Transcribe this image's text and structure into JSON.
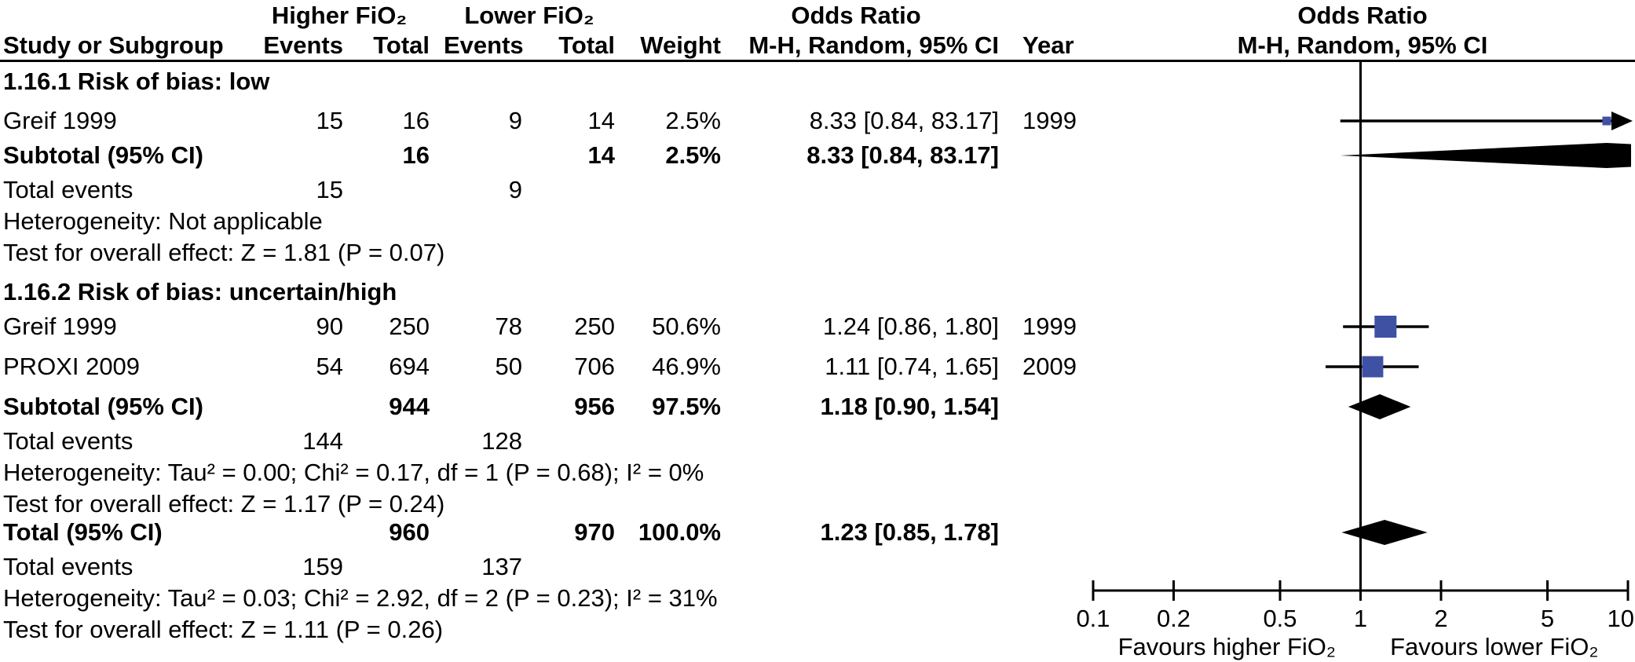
{
  "header": {
    "group_higher": "Higher FiO₂",
    "group_lower": "Lower FiO₂",
    "or_text_col_title": "Odds Ratio",
    "or_plot_col_title": "Odds Ratio",
    "col_study": "Study or Subgroup",
    "col_events_higher": "Events",
    "col_total_higher": "Total",
    "col_events_lower": "Events",
    "col_total_lower": "Total",
    "col_weight": "Weight",
    "col_mh": "M-H, Random, 95% CI",
    "col_year": "Year",
    "plot_mh": "M-H, Random, 95% CI"
  },
  "rows": [
    {
      "label": "1.16.1 Risk of bias: low"
    },
    {
      "study": "Greif 1999",
      "e1": "15",
      "t1": "16",
      "e2": "9",
      "t2": "14",
      "weight": "2.5%",
      "or": "8.33 [0.84, 83.17]",
      "year": "1999"
    },
    {
      "label": "Subtotal (95% CI)",
      "t1": "16",
      "t2": "14",
      "weight": "2.5%",
      "or": "8.33 [0.84, 83.17]"
    },
    {
      "label": "Total events",
      "e1": "15",
      "e2": "9"
    },
    {
      "label": "Heterogeneity: Not applicable"
    },
    {
      "label": "Test for overall effect: Z = 1.81 (P = 0.07)"
    },
    {
      "label": "1.16.2 Risk of bias: uncertain/high"
    },
    {
      "study": "Greif 1999",
      "e1": "90",
      "t1": "250",
      "e2": "78",
      "t2": "250",
      "weight": "50.6%",
      "or": "1.24 [0.86, 1.80]",
      "year": "1999"
    },
    {
      "study": "PROXI 2009",
      "e1": "54",
      "t1": "694",
      "e2": "50",
      "t2": "706",
      "weight": "46.9%",
      "or": "1.11 [0.74, 1.65]",
      "year": "2009"
    },
    {
      "label": "Subtotal (95% CI)",
      "t1": "944",
      "t2": "956",
      "weight": "97.5%",
      "or": "1.18 [0.90, 1.54]"
    },
    {
      "label": "Total events",
      "e1": "144",
      "e2": "128"
    },
    {
      "label": "Heterogeneity: Tau² = 0.00; Chi² = 0.17, df = 1 (P = 0.68); I² = 0%"
    },
    {
      "label": "Test for overall effect: Z = 1.17 (P = 0.24)"
    },
    {
      "label": "Total (95% CI)",
      "t1": "960",
      "t2": "970",
      "weight": "100.0%",
      "or": "1.23 [0.85, 1.78]"
    },
    {
      "label": "Total events",
      "e1": "159",
      "e2": "137"
    },
    {
      "label": "Heterogeneity: Tau² = 0.03; Chi² = 2.92, df = 2 (P = 0.23); I² = 31%"
    },
    {
      "label": "Test for overall effect: Z = 1.11 (P = 0.26)"
    }
  ],
  "chart_data": {
    "type": "forest",
    "effect_measure": "Odds Ratio",
    "method": "M-H, Random, 95% CI",
    "x_scale": "log",
    "x_ticks": [
      0.1,
      0.2,
      0.5,
      1,
      2,
      5,
      10
    ],
    "x_range": [
      0.1,
      10
    ],
    "marker_color": "#3f51a3",
    "diamond_color": "#000000",
    "favours_left": "Favours higher FiO₂",
    "favours_right": "Favours lower FiO₂",
    "subgroups": [
      {
        "name": "1.16.1 Risk of bias: low",
        "studies": [
          {
            "study": "Greif 1999",
            "year": 1999,
            "events_higher": 15,
            "total_higher": 16,
            "events_lower": 9,
            "total_lower": 14,
            "weight_pct": 2.5,
            "or": 8.33,
            "ci_low": 0.84,
            "ci_high": 83.17
          }
        ],
        "subtotal": {
          "total_higher": 16,
          "total_lower": 14,
          "weight_pct": 2.5,
          "or": 8.33,
          "ci_low": 0.84,
          "ci_high": 83.17
        },
        "total_events_higher": 15,
        "total_events_lower": 9,
        "heterogeneity": "Not applicable",
        "overall_effect": "Z = 1.81 (P = 0.07)"
      },
      {
        "name": "1.16.2 Risk of bias: uncertain/high",
        "studies": [
          {
            "study": "Greif 1999",
            "year": 1999,
            "events_higher": 90,
            "total_higher": 250,
            "events_lower": 78,
            "total_lower": 250,
            "weight_pct": 50.6,
            "or": 1.24,
            "ci_low": 0.86,
            "ci_high": 1.8
          },
          {
            "study": "PROXI 2009",
            "year": 2009,
            "events_higher": 54,
            "total_higher": 694,
            "events_lower": 50,
            "total_lower": 706,
            "weight_pct": 46.9,
            "or": 1.11,
            "ci_low": 0.74,
            "ci_high": 1.65
          }
        ],
        "subtotal": {
          "total_higher": 944,
          "total_lower": 956,
          "weight_pct": 97.5,
          "or": 1.18,
          "ci_low": 0.9,
          "ci_high": 1.54
        },
        "total_events_higher": 144,
        "total_events_lower": 128,
        "heterogeneity": "Tau² = 0.00; Chi² = 0.17, df = 1 (P = 0.68); I² = 0%",
        "overall_effect": "Z = 1.17 (P = 0.24)"
      }
    ],
    "total": {
      "total_higher": 960,
      "total_lower": 970,
      "weight_pct": 100.0,
      "or": 1.23,
      "ci_low": 0.85,
      "ci_high": 1.78,
      "total_events_higher": 159,
      "total_events_lower": 137,
      "heterogeneity": "Tau² = 0.03; Chi² = 2.92, df = 2 (P = 0.23); I² = 31%",
      "overall_effect": "Z = 1.11 (P = 0.26)"
    }
  }
}
